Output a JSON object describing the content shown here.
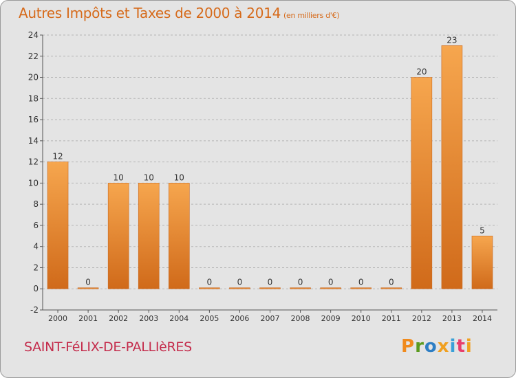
{
  "header": {
    "title": "Autres Impôts et Taxes de 2000 à 2014",
    "unit": "(en milliers d'€)"
  },
  "footer": {
    "commune": "SAINT-FéLIX-DE-PALLIèRES",
    "brand": "Proxiti"
  },
  "colors": {
    "title": "#d66a1a",
    "commune": "#c42b4b",
    "bar_light": "#f6a64e",
    "bar_dark": "#d06a1a",
    "background": "#e4e4e4",
    "brand_letters": [
      "#f08a1c",
      "#5a9a1e",
      "#2d7ec4",
      "#f0a020",
      "#3aa0d8",
      "#e83e6c",
      "#f0a020"
    ]
  },
  "chart_data": {
    "type": "bar",
    "categories": [
      "2000",
      "2001",
      "2002",
      "2003",
      "2004",
      "2005",
      "2006",
      "2007",
      "2008",
      "2009",
      "2010",
      "2011",
      "2012",
      "2013",
      "2014"
    ],
    "values": [
      12,
      0,
      10,
      10,
      10,
      0,
      0,
      0,
      0,
      0,
      0,
      0,
      20,
      23,
      5
    ],
    "data_labels": [
      "12",
      "0",
      "10",
      "10",
      "10",
      "0",
      "0",
      "0",
      "0",
      "0",
      "0",
      "0",
      "20",
      "23",
      "5"
    ],
    "title": "Autres Impôts et Taxes de 2000 à 2014",
    "xlabel": "",
    "ylabel": "",
    "ylim": [
      -2,
      24
    ],
    "yticks": [
      -2,
      0,
      2,
      4,
      6,
      8,
      10,
      12,
      14,
      16,
      18,
      20,
      22,
      24
    ],
    "grid": "horizontal dashed"
  }
}
